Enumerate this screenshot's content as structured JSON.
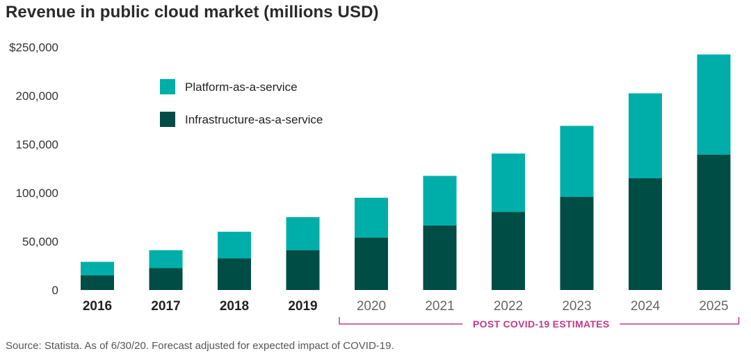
{
  "title": "Revenue in public cloud market (millions USD)",
  "source": "Source: Statista. As of 6/30/20. Forecast adjusted for expected impact of COVID-19.",
  "colors": {
    "paas": "#00aea9",
    "iaas": "#004d45",
    "annotation": "#c2388a",
    "actual_label": "#222222",
    "estimate_label": "#666666"
  },
  "chart_data": {
    "type": "bar",
    "stacked": true,
    "categories": [
      "2016",
      "2017",
      "2018",
      "2019",
      "2020",
      "2021",
      "2022",
      "2023",
      "2024",
      "2025"
    ],
    "series": [
      {
        "name": "Infrastructure-as-a-service",
        "values": [
          15000,
          22500,
          32500,
          41000,
          54000,
          66500,
          80500,
          96000,
          115000,
          139500
        ]
      },
      {
        "name": "Platform-as-a-service",
        "values": [
          14000,
          18500,
          27500,
          34000,
          41000,
          51000,
          60000,
          73000,
          87500,
          103000
        ]
      }
    ],
    "y_ticks": [
      "$250,000",
      "200,000",
      "150,000",
      "100,000",
      "50,000",
      "0"
    ],
    "ylim": [
      0,
      250000
    ],
    "legend": [
      "Platform-as-a-service",
      "Infrastructure-as-a-service"
    ],
    "legend_position": "top-left",
    "annotation": {
      "text": "POST COVID-19 ESTIMATES",
      "from": "2020",
      "to": "2025"
    },
    "estimate_start_index": 4
  }
}
